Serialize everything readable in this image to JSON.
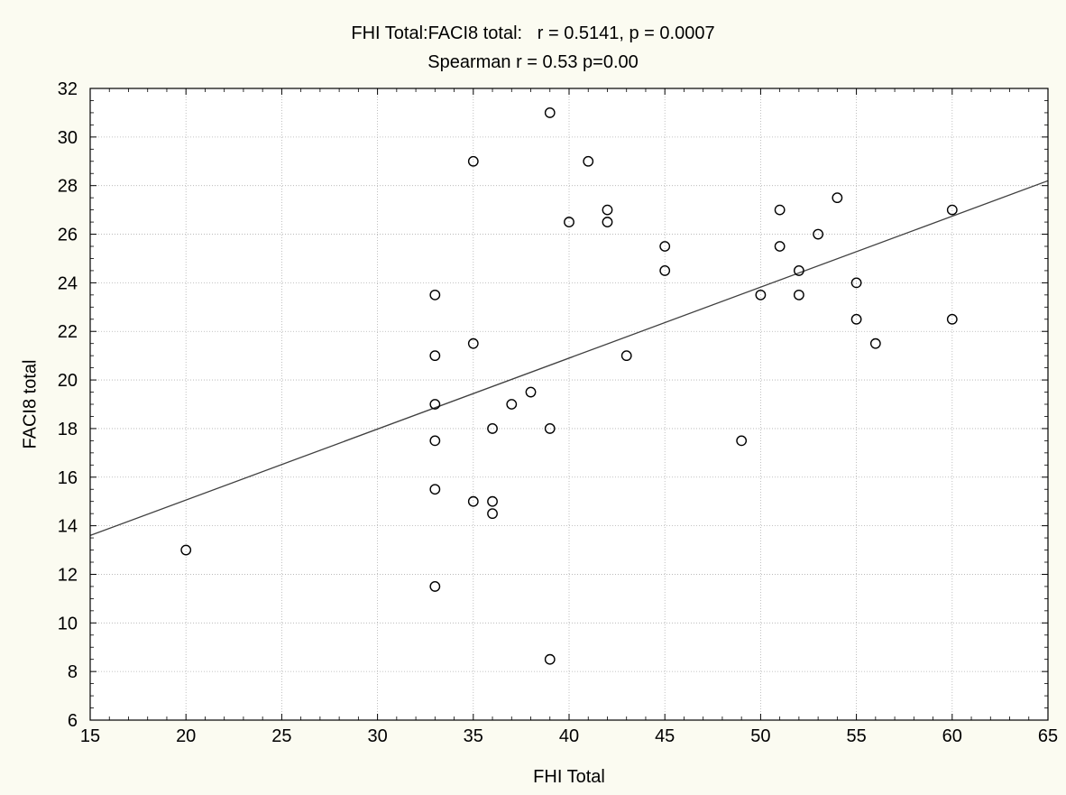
{
  "chart_data": {
    "type": "scatter",
    "title": "FHI Total:FACI8 total:   r = 0.5141, p = 0.0007",
    "subtitle": "Spearman r = 0.53 p=0.00",
    "xlabel": "FHI Total",
    "ylabel": "FACI8 total",
    "xlim": [
      15,
      65
    ],
    "ylim": [
      6,
      32
    ],
    "xticks": [
      "15",
      "20",
      "25",
      "30",
      "35",
      "40",
      "45",
      "50",
      "55",
      "60",
      "65"
    ],
    "yticks": [
      "6",
      "8",
      "10",
      "12",
      "14",
      "16",
      "18",
      "20",
      "22",
      "24",
      "26",
      "28",
      "30",
      "32"
    ],
    "grid": true,
    "colors": {
      "background": "#fbfbf1",
      "plot": "#ffffff",
      "points": "#000000",
      "fit": "#404040",
      "grid": "#b0b0b0"
    },
    "points": [
      {
        "x": 20,
        "y": 13
      },
      {
        "x": 33,
        "y": 23.5
      },
      {
        "x": 33,
        "y": 21
      },
      {
        "x": 33,
        "y": 19
      },
      {
        "x": 33,
        "y": 17.5
      },
      {
        "x": 33,
        "y": 15.5
      },
      {
        "x": 33,
        "y": 11.5
      },
      {
        "x": 35,
        "y": 29
      },
      {
        "x": 35,
        "y": 21.5
      },
      {
        "x": 35,
        "y": 15
      },
      {
        "x": 36,
        "y": 18
      },
      {
        "x": 36,
        "y": 15
      },
      {
        "x": 36,
        "y": 14.5
      },
      {
        "x": 37,
        "y": 19
      },
      {
        "x": 38,
        "y": 19.5
      },
      {
        "x": 39,
        "y": 31
      },
      {
        "x": 39,
        "y": 18
      },
      {
        "x": 39,
        "y": 8.5
      },
      {
        "x": 40,
        "y": 26.5
      },
      {
        "x": 41,
        "y": 29
      },
      {
        "x": 42,
        "y": 27
      },
      {
        "x": 42,
        "y": 26.5
      },
      {
        "x": 43,
        "y": 21
      },
      {
        "x": 45,
        "y": 25.5
      },
      {
        "x": 45,
        "y": 24.5
      },
      {
        "x": 49,
        "y": 17.5
      },
      {
        "x": 50,
        "y": 23.5
      },
      {
        "x": 51,
        "y": 27
      },
      {
        "x": 51,
        "y": 25.5
      },
      {
        "x": 52,
        "y": 24.5
      },
      {
        "x": 52,
        "y": 23.5
      },
      {
        "x": 53,
        "y": 26
      },
      {
        "x": 54,
        "y": 27.5
      },
      {
        "x": 55,
        "y": 24
      },
      {
        "x": 55,
        "y": 22.5
      },
      {
        "x": 56,
        "y": 21.5
      },
      {
        "x": 60,
        "y": 27
      },
      {
        "x": 60,
        "y": 22.5
      }
    ],
    "fit_line": {
      "x": [
        15,
        65
      ],
      "y": [
        13.6,
        28.2
      ]
    }
  }
}
